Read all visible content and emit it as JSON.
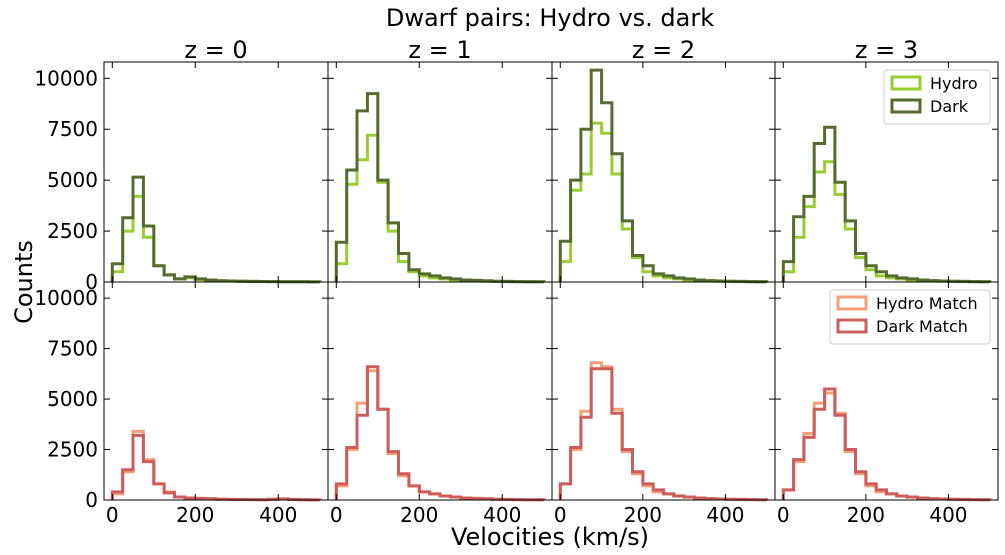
{
  "chart_data": {
    "type": "histogram-grid",
    "title": "Dwarf pairs: Hydro vs. dark",
    "xlabel": "Velocities (km/s)",
    "ylabel": "Counts",
    "xlim": [
      -20,
      520
    ],
    "ylim": [
      0,
      10800
    ],
    "xticks": [
      0,
      200,
      400
    ],
    "yticks": [
      0,
      2500,
      5000,
      7500,
      10000
    ],
    "bin_width": 25,
    "bin_start": 0,
    "columns": [
      "z = 0",
      "z = 1",
      "z = 2",
      "z = 3"
    ],
    "colors": {
      "Hydro": "#9acd32",
      "Dark": "#556b2f",
      "Hydro Match": "#f4a07a",
      "Dark Match": "#cd5c5c"
    },
    "rows": [
      {
        "legend": [
          "Hydro",
          "Dark"
        ],
        "panels": [
          {
            "Hydro": [
              500,
              2500,
              4200,
              2200,
              800,
              350,
              150,
              200,
              120,
              80,
              60,
              50,
              40,
              30,
              25,
              20,
              15,
              10,
              8,
              5
            ],
            "Dark": [
              900,
              3150,
              5150,
              2750,
              800,
              350,
              150,
              250,
              150,
              100,
              60,
              50,
              40,
              30,
              25,
              20,
              15,
              10,
              8,
              5
            ]
          },
          {
            "Hydro": [
              900,
              4800,
              6000,
              7200,
              4900,
              2500,
              1000,
              500,
              300,
              200,
              150,
              100,
              80,
              60,
              40,
              30,
              20,
              15,
              10,
              5
            ],
            "Dark": [
              1950,
              5500,
              8400,
              9250,
              5000,
              2900,
              1400,
              600,
              400,
              300,
              200,
              150,
              100,
              80,
              60,
              40,
              30,
              20,
              15,
              10
            ]
          },
          {
            "Hydro": [
              1000,
              4500,
              5300,
              7800,
              7300,
              5300,
              2600,
              1200,
              500,
              300,
              200,
              150,
              100,
              70,
              50,
              40,
              30,
              20,
              15,
              10
            ],
            "Dark": [
              2000,
              5000,
              7500,
              10400,
              8800,
              6300,
              3000,
              1300,
              800,
              400,
              300,
              200,
              150,
              100,
              70,
              50,
              40,
              30,
              20,
              10
            ]
          },
          {
            "Hydro": [
              500,
              2200,
              3700,
              5400,
              5900,
              4300,
              2600,
              1200,
              600,
              300,
              200,
              150,
              100,
              70,
              50,
              40,
              30,
              20,
              15,
              10
            ],
            "Dark": [
              1000,
              3200,
              4200,
              6800,
              7600,
              4900,
              3000,
              1400,
              800,
              500,
              300,
              200,
              150,
              100,
              70,
              50,
              40,
              30,
              20,
              10
            ]
          }
        ]
      },
      {
        "legend": [
          "Hydro Match",
          "Dark Match"
        ],
        "panels": [
          {
            "Hydro Match": [
              300,
              1400,
              3400,
              2000,
              800,
              400,
              150,
              100,
              80,
              60,
              40,
              30,
              25,
              20,
              15,
              40,
              60,
              30,
              10,
              5
            ],
            "Dark Match": [
              400,
              1500,
              3200,
              1900,
              800,
              350,
              150,
              100,
              80,
              60,
              40,
              30,
              25,
              20,
              15,
              40,
              50,
              25,
              10,
              5
            ]
          },
          {
            "Hydro Match": [
              700,
              2500,
              4800,
              6400,
              4500,
              2300,
              1200,
              700,
              400,
              300,
              200,
              150,
              100,
              80,
              60,
              40,
              30,
              20,
              15,
              10
            ],
            "Dark Match": [
              800,
              2600,
              4200,
              6600,
              4500,
              2400,
              1300,
              700,
              400,
              300,
              200,
              150,
              100,
              80,
              60,
              40,
              30,
              20,
              15,
              10
            ]
          },
          {
            "Hydro Match": [
              800,
              2500,
              4400,
              6800,
              6600,
              4500,
              2400,
              1300,
              700,
              400,
              300,
              200,
              150,
              100,
              70,
              50,
              40,
              30,
              20,
              10
            ],
            "Dark Match": [
              800,
              2600,
              4100,
              6500,
              6500,
              4300,
              2500,
              1400,
              800,
              500,
              300,
              200,
              150,
              100,
              70,
              50,
              40,
              30,
              20,
              10
            ]
          },
          {
            "Hydro Match": [
              500,
              1900,
              3300,
              4800,
              5300,
              4300,
              2400,
              1300,
              700,
              400,
              300,
              200,
              150,
              100,
              70,
              50,
              40,
              30,
              20,
              10
            ],
            "Dark Match": [
              500,
              2000,
              3100,
              4500,
              5500,
              4200,
              2500,
              1400,
              800,
              500,
              300,
              200,
              150,
              100,
              70,
              50,
              40,
              30,
              20,
              10
            ]
          }
        ]
      }
    ]
  }
}
